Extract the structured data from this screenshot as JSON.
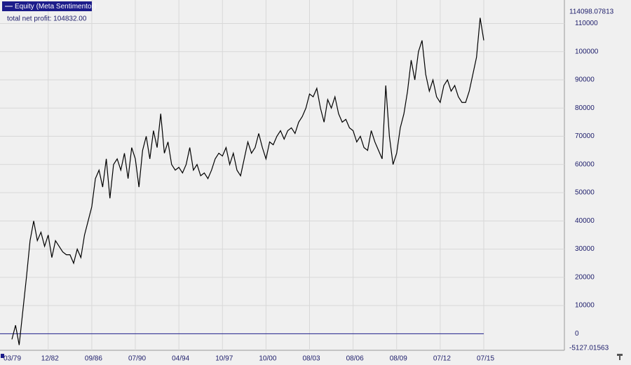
{
  "chart_data": {
    "type": "line",
    "annotation": "total net profit: 104832.00",
    "categories": [
      "03/79",
      null,
      null,
      null,
      null,
      null,
      null,
      null,
      null,
      null,
      "12/82",
      null,
      null,
      null,
      null,
      null,
      null,
      null,
      null,
      null,
      null,
      null,
      "09/86",
      null,
      null,
      null,
      null,
      null,
      null,
      null,
      null,
      null,
      null,
      null,
      "07/90",
      null,
      null,
      null,
      null,
      null,
      null,
      null,
      null,
      null,
      null,
      null,
      "04/94",
      null,
      null,
      null,
      null,
      null,
      null,
      null,
      null,
      null,
      null,
      null,
      "10/97",
      null,
      null,
      null,
      null,
      null,
      null,
      null,
      null,
      null,
      null,
      null,
      "10/00",
      null,
      null,
      null,
      null,
      null,
      null,
      null,
      null,
      null,
      null,
      null,
      "08/03",
      null,
      null,
      null,
      null,
      null,
      null,
      null,
      null,
      null,
      null,
      null,
      "08/06",
      null,
      null,
      null,
      null,
      null,
      null,
      null,
      null,
      null,
      null,
      null,
      "08/09",
      null,
      null,
      null,
      null,
      null,
      null,
      null,
      null,
      null,
      null,
      null,
      "07/12",
      null,
      null,
      null,
      null,
      null,
      null,
      null,
      null,
      null,
      null,
      null,
      "07/15"
    ],
    "series": [
      {
        "name": "Equity (Meta Sentimentor)",
        "color": "#000000",
        "legend_color": "#1c1c8a",
        "values": [
          -2000,
          3000,
          -4000,
          8000,
          20000,
          33000,
          40000,
          33000,
          36000,
          31000,
          35000,
          27000,
          33000,
          31000,
          29000,
          28000,
          28000,
          25000,
          30000,
          27000,
          35000,
          40000,
          45000,
          55000,
          58000,
          52000,
          62000,
          48000,
          60000,
          62000,
          58000,
          64000,
          55000,
          66000,
          62000,
          52000,
          65000,
          70000,
          62000,
          72000,
          66000,
          78000,
          64000,
          68000,
          60000,
          58000,
          59000,
          57000,
          60000,
          66000,
          58000,
          60000,
          56000,
          57000,
          55000,
          58000,
          62000,
          64000,
          63000,
          66000,
          60000,
          64000,
          58000,
          56000,
          62000,
          68000,
          64000,
          66000,
          71000,
          66000,
          62000,
          68000,
          67000,
          70000,
          72000,
          69000,
          72000,
          73000,
          71000,
          75000,
          77000,
          80000,
          85000,
          84000,
          87000,
          80000,
          75000,
          83000,
          80000,
          84000,
          78000,
          75000,
          76000,
          73000,
          72000,
          68000,
          70000,
          66000,
          65000,
          72000,
          68000,
          65000,
          62000,
          88000,
          70000,
          60000,
          64000,
          73000,
          78000,
          86000,
          97000,
          90000,
          100000,
          104000,
          92000,
          86000,
          90000,
          84000,
          82000,
          88000,
          90000,
          86000,
          88000,
          84000,
          82000,
          82000,
          86000,
          92000,
          98000,
          112000,
          104000
        ]
      }
    ],
    "ylim": [
      -5127.01563,
      114098.07813
    ],
    "yticks": [
      0,
      10000,
      20000,
      30000,
      40000,
      50000,
      60000,
      70000,
      80000,
      90000,
      100000,
      110000
    ],
    "grid": true,
    "zero_line_color": "#1c1c8a"
  }
}
